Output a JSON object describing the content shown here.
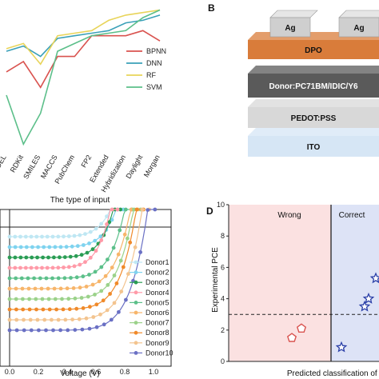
{
  "panels": {
    "B": "B",
    "D": "D"
  },
  "chart_data": [
    {
      "id": "A",
      "type": "line",
      "xlabel": "The type of input",
      "categories": [
        "DEL",
        "RDKit",
        "SMILES",
        "MACCS",
        "PubChem",
        "FP2",
        "Extended",
        "Hybridization",
        "Daylight",
        "Morgan"
      ],
      "series": [
        {
          "name": "BPNN",
          "color": "#d9534f",
          "values": [
            0.66,
            0.7,
            0.6,
            0.72,
            0.72,
            0.8,
            0.8,
            0.8,
            0.82,
            0.78
          ]
        },
        {
          "name": "DNN",
          "color": "#3aa0b8",
          "values": [
            0.74,
            0.76,
            0.72,
            0.79,
            0.8,
            0.81,
            0.82,
            0.85,
            0.86,
            0.88
          ]
        },
        {
          "name": "RF",
          "color": "#e8d45a",
          "values": [
            0.75,
            0.77,
            0.69,
            0.8,
            0.81,
            0.82,
            0.86,
            0.88,
            0.89,
            0.9
          ]
        },
        {
          "name": "SVM",
          "color": "#5cbf8a",
          "values": [
            0.57,
            0.38,
            0.5,
            0.74,
            0.77,
            0.8,
            0.81,
            0.82,
            0.87,
            0.9
          ]
        }
      ],
      "legend": "right"
    },
    {
      "id": "B",
      "type": "diagram",
      "layers": [
        {
          "label": "DPO",
          "color": "#d97c3a",
          "text_color": "#111"
        },
        {
          "label": "Donor:PC71BM/IDIC/Y6",
          "color": "#5a5a5a",
          "text_color": "#ffffff"
        },
        {
          "label": "PEDOT:PSS",
          "color": "#d8d8d8",
          "text_color": "#111"
        },
        {
          "label": "ITO",
          "color": "#d6e6f5",
          "text_color": "#111"
        }
      ],
      "electrode_label": "Ag"
    },
    {
      "id": "C",
      "type": "line",
      "xlabel": "Voltage (V)",
      "x_ticks": [
        "0.0",
        "0.2",
        "0.4",
        "0.6",
        "0.8",
        "1.0"
      ],
      "series": [
        {
          "name": "Donor1",
          "color": "#bfe7f3",
          "voc": 0.7
        },
        {
          "name": "Donor2",
          "color": "#7fd3ef",
          "voc": 0.74
        },
        {
          "name": "Donor3",
          "color": "#2a9d54",
          "voc": 0.72
        },
        {
          "name": "Donor4",
          "color": "#ff9aa8",
          "voc": 0.7
        },
        {
          "name": "Donor5",
          "color": "#5cc08a",
          "voc": 0.8
        },
        {
          "name": "Donor6",
          "color": "#f7b56a",
          "voc": 0.84
        },
        {
          "name": "Donor7",
          "color": "#9bd28a",
          "voc": 0.86
        },
        {
          "name": "Donor8",
          "color": "#f08a2a",
          "voc": 0.88
        },
        {
          "name": "Donor9",
          "color": "#f3c48f",
          "voc": 0.92
        },
        {
          "name": "Donor10",
          "color": "#6a70c4",
          "voc": 0.96
        }
      ]
    },
    {
      "id": "D",
      "type": "scatter",
      "ylabel": "Experimental PCE",
      "xlabel": "Predicted classification of P",
      "ylim": [
        0,
        10
      ],
      "y_ticks": [
        0,
        2,
        4,
        6,
        8,
        10
      ],
      "threshold": 3,
      "regions": [
        {
          "label": "Wrong",
          "color": "#fbe1e1",
          "text_color": "#d9534f"
        },
        {
          "label": "Correct",
          "color": "#dde3f6",
          "text_color": "#2a3fa8"
        }
      ],
      "wrong_points": [
        1.5,
        2.1
      ],
      "correct_points": [
        0.9,
        3.5,
        4.0,
        5.3
      ]
    }
  ]
}
